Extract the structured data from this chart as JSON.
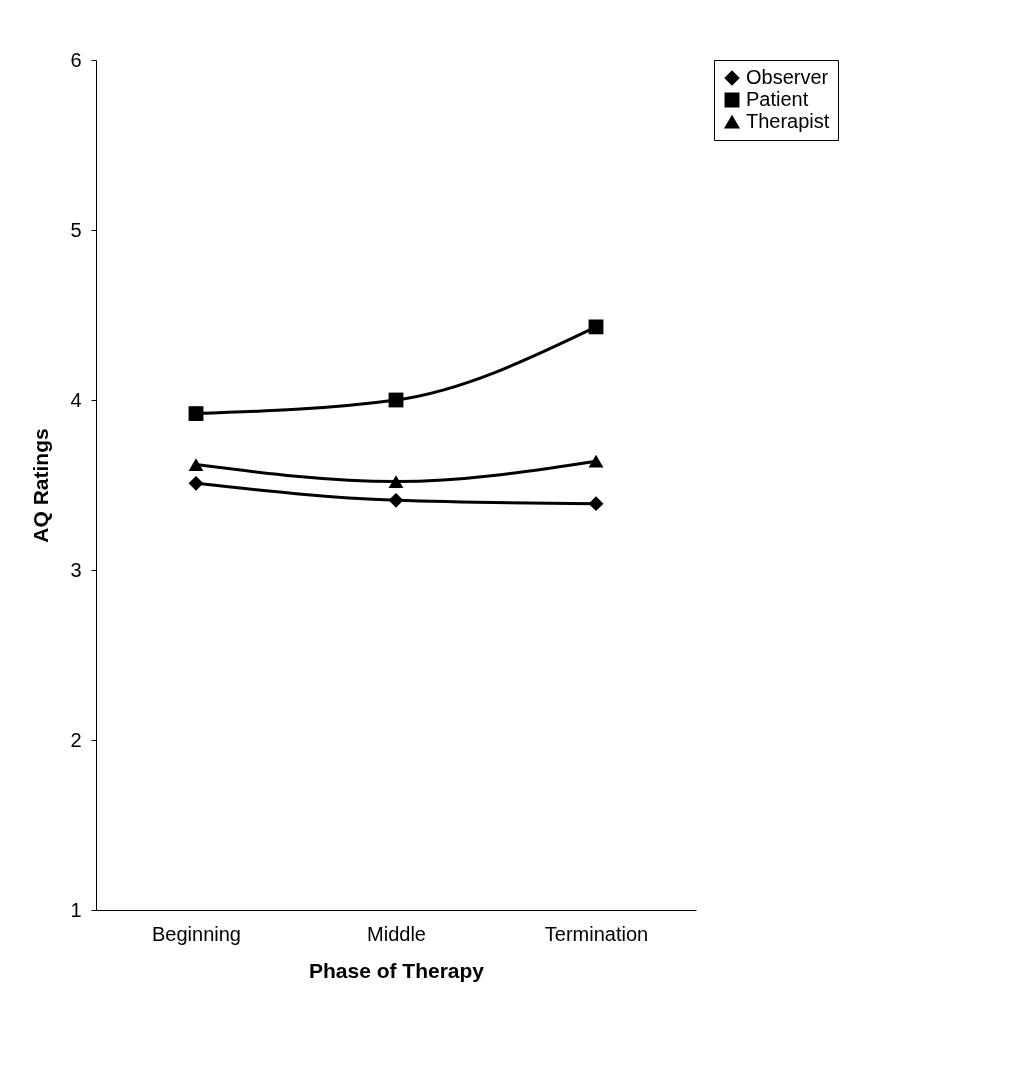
{
  "chart_data": {
    "type": "line",
    "xlabel": "Phase of Therapy",
    "ylabel": "AQ Ratings",
    "categories": [
      "Beginning",
      "Middle",
      "Termination"
    ],
    "series": [
      {
        "name": "Observer",
        "color": "#000000",
        "marker": "diamond",
        "values": [
          3.51,
          3.41,
          3.39
        ]
      },
      {
        "name": "Patient",
        "color": "#000000",
        "marker": "square",
        "values": [
          3.92,
          4.0,
          4.43
        ]
      },
      {
        "name": "Therapist",
        "color": "#000000",
        "marker": "triangle",
        "values": [
          3.62,
          3.52,
          3.64
        ]
      }
    ],
    "ylim": [
      1,
      6
    ],
    "yticks": [
      1,
      2,
      3,
      4,
      5,
      6
    ],
    "grid": false,
    "legend": "right",
    "line_style": "solid"
  }
}
